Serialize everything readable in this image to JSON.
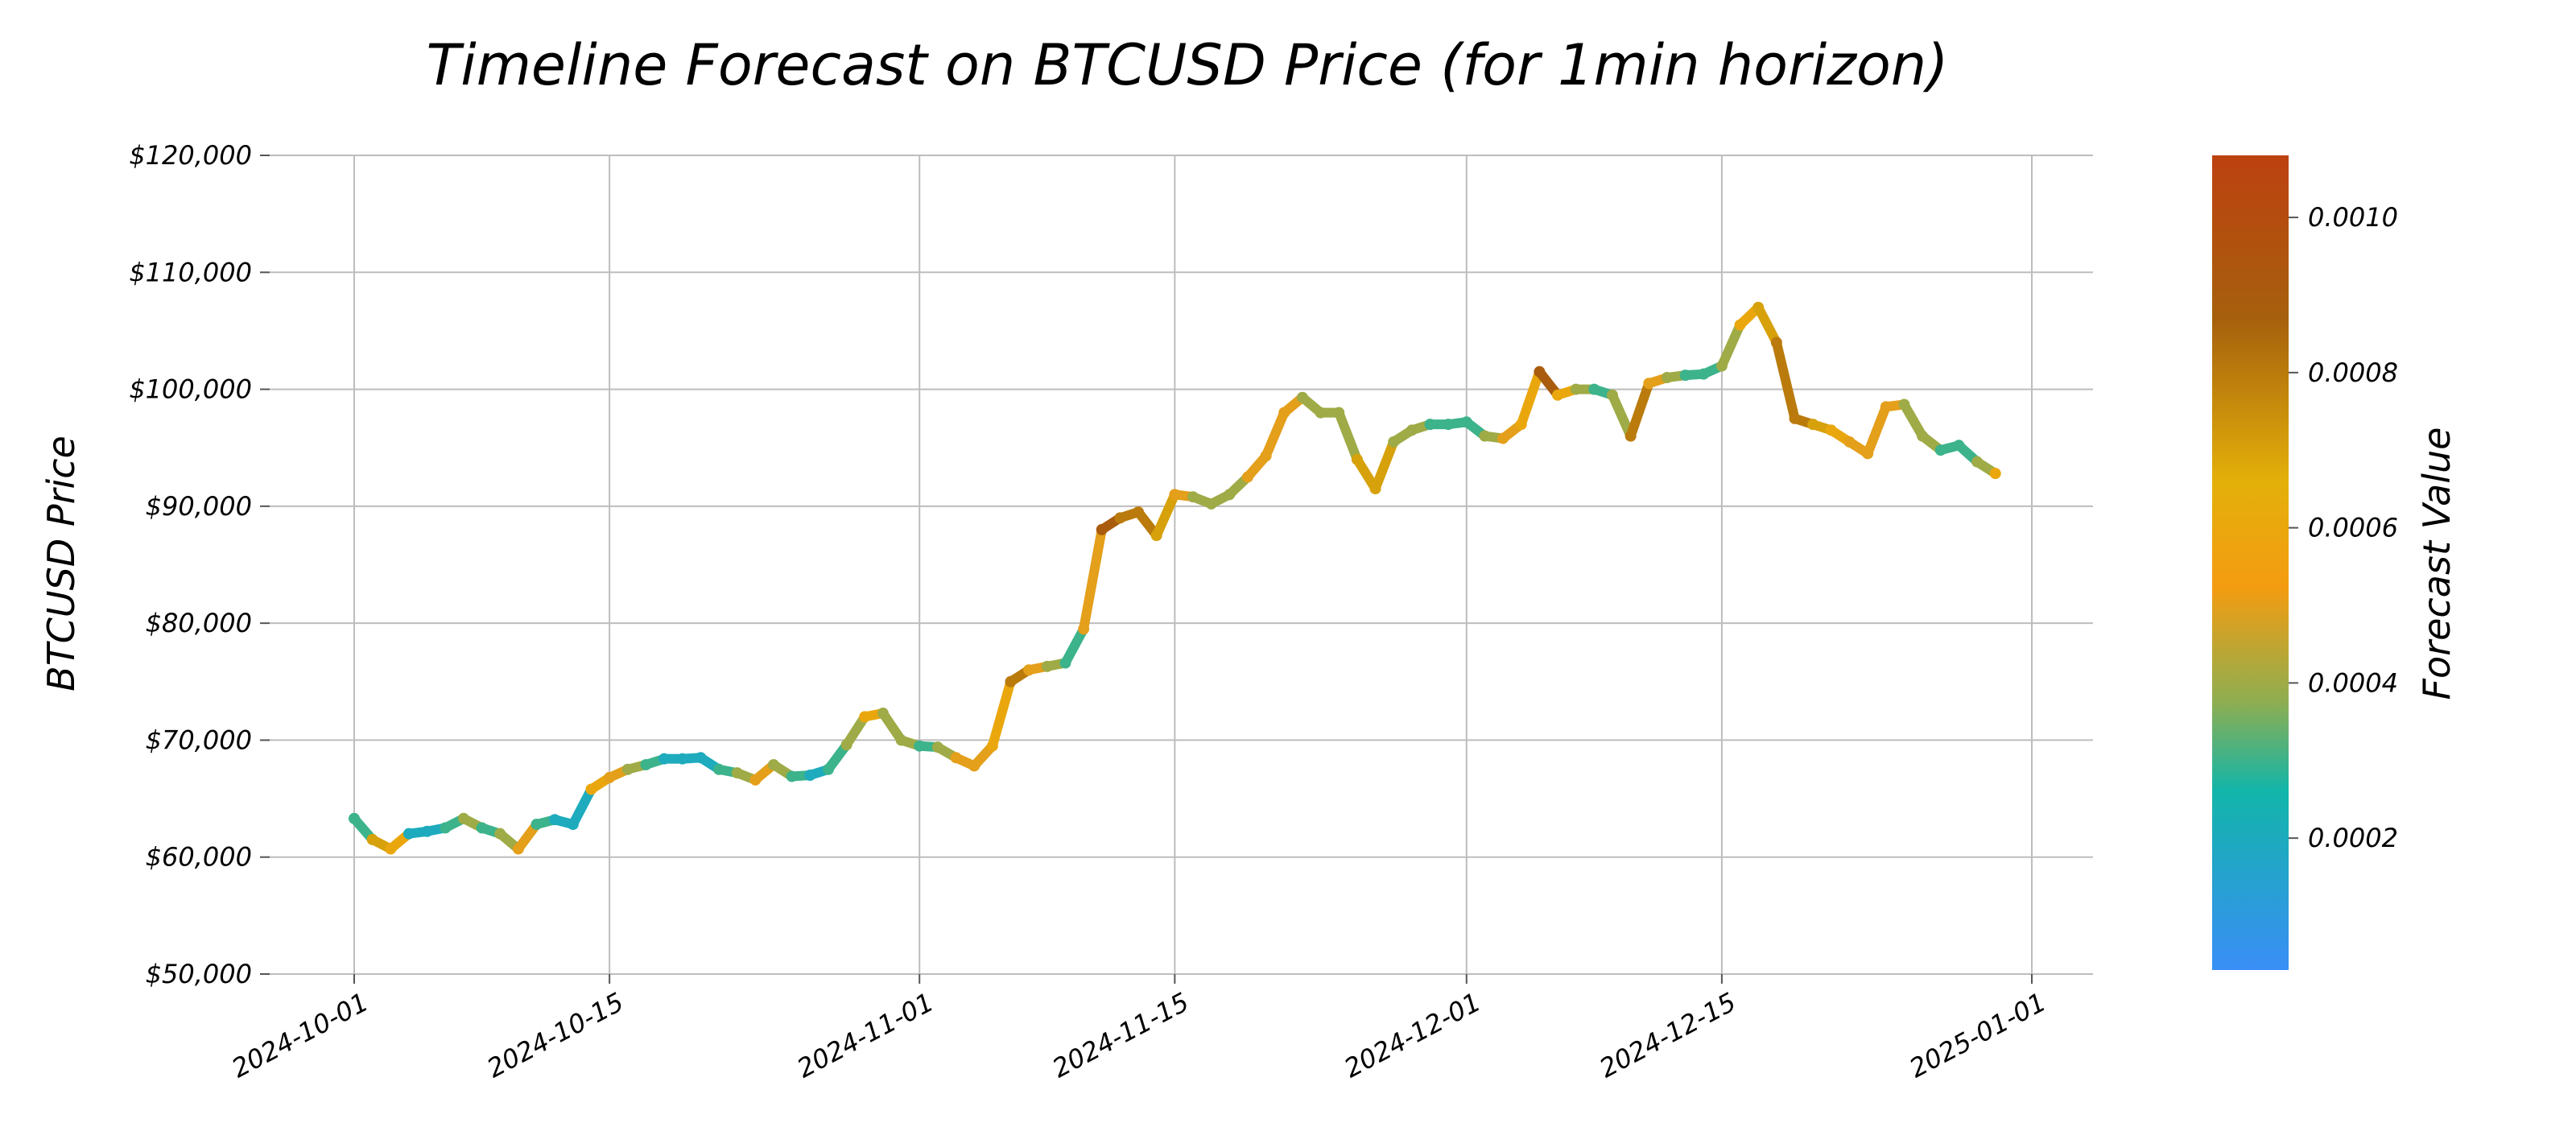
{
  "chart_data": {
    "type": "line",
    "title": "Timeline Forecast on BTCUSD Price (for 1min horizon)",
    "xlabel": "",
    "ylabel": "BTCUSD Price",
    "xlim": [
      "2024-10-01",
      "2025-01-01"
    ],
    "ylim": [
      50000,
      120000
    ],
    "y_ticks": [
      50000,
      60000,
      70000,
      80000,
      90000,
      100000,
      110000,
      120000
    ],
    "y_tick_labels": [
      "$50,000",
      "$60,000",
      "$70,000",
      "$80,000",
      "$90,000",
      "$100,000",
      "$110,000",
      "$120,000"
    ],
    "x_ticks": [
      "2024-10-01",
      "2024-10-15",
      "2024-11-01",
      "2024-11-15",
      "2024-12-01",
      "2024-12-15",
      "2025-01-01"
    ],
    "grid": true,
    "colorbar": {
      "label": "Forecast Value",
      "range": [
        3e-05,
        0.00108
      ],
      "ticks": [
        0.0002,
        0.0004,
        0.0006,
        0.0008,
        0.001
      ],
      "tick_labels": [
        "0.0002",
        "0.0004",
        "0.0006",
        "0.0008",
        "0.0010"
      ],
      "colors": [
        "#3a8ef6",
        "#12b5a9",
        "#f49c11",
        "#e3b00a",
        "#a6600d",
        "#bd4110"
      ]
    },
    "series": [
      {
        "x": [
          "2024-10-01",
          "2024-10-02",
          "2024-10-03",
          "2024-10-04",
          "2024-10-05",
          "2024-10-06",
          "2024-10-07",
          "2024-10-08",
          "2024-10-09",
          "2024-10-10",
          "2024-10-11",
          "2024-10-12",
          "2024-10-13",
          "2024-10-14",
          "2024-10-15",
          "2024-10-16",
          "2024-10-17",
          "2024-10-18",
          "2024-10-19",
          "2024-10-20",
          "2024-10-21",
          "2024-10-22",
          "2024-10-23",
          "2024-10-24",
          "2024-10-25",
          "2024-10-26",
          "2024-10-27",
          "2024-10-28",
          "2024-10-29",
          "2024-10-30",
          "2024-10-31",
          "2024-11-01",
          "2024-11-02",
          "2024-11-03",
          "2024-11-04",
          "2024-11-05",
          "2024-11-06",
          "2024-11-07",
          "2024-11-08",
          "2024-11-09",
          "2024-11-10",
          "2024-11-11",
          "2024-11-12",
          "2024-11-13",
          "2024-11-14",
          "2024-11-15",
          "2024-11-16",
          "2024-11-17",
          "2024-11-18",
          "2024-11-19",
          "2024-11-20",
          "2024-11-21",
          "2024-11-22",
          "2024-11-23",
          "2024-11-24",
          "2024-11-25",
          "2024-11-26",
          "2024-11-27",
          "2024-11-28",
          "2024-11-29",
          "2024-11-30",
          "2024-12-01",
          "2024-12-02",
          "2024-12-03",
          "2024-12-04",
          "2024-12-05",
          "2024-12-06",
          "2024-12-07",
          "2024-12-08",
          "2024-12-09",
          "2024-12-10",
          "2024-12-11",
          "2024-12-12",
          "2024-12-13",
          "2024-12-14",
          "2024-12-15",
          "2024-12-16",
          "2024-12-17",
          "2024-12-18",
          "2024-12-19",
          "2024-12-20",
          "2024-12-21",
          "2024-12-22",
          "2024-12-23",
          "2024-12-24",
          "2024-12-25",
          "2024-12-26",
          "2024-12-27",
          "2024-12-28",
          "2024-12-29",
          "2024-12-30"
        ],
        "y": [
          63300,
          61500,
          60700,
          62000,
          62200,
          62500,
          63300,
          62500,
          62000,
          60700,
          62800,
          63200,
          62800,
          65800,
          66800,
          67500,
          67900,
          68400,
          68400,
          68500,
          67500,
          67200,
          66600,
          67900,
          66900,
          67000,
          67500,
          69600,
          72000,
          72300,
          70000,
          69500,
          69400,
          68500,
          67800,
          69500,
          75000,
          76000,
          76300,
          76600,
          79500,
          88000,
          89000,
          89500,
          87500,
          91000,
          90800,
          90200,
          91000,
          92500,
          94300,
          98000,
          99300,
          98000,
          98000,
          94000,
          91500,
          95500,
          96500,
          97000,
          97000,
          97200,
          96000,
          95800,
          97000,
          101500,
          99500,
          100000,
          100000,
          99500,
          96000,
          100500,
          101000,
          101200,
          101300,
          102000,
          105500,
          107000,
          104000,
          97500,
          97000,
          96500,
          95500,
          94500,
          98500,
          98700,
          96000,
          94800,
          95200,
          93800,
          92800
        ],
        "forecast": [
          0.0003,
          0.0007,
          0.0006,
          0.0002,
          0.0002,
          0.0003,
          0.0004,
          0.0003,
          0.0004,
          0.0005,
          0.0003,
          0.0002,
          0.0002,
          0.0006,
          0.0005,
          0.0004,
          0.0003,
          0.0002,
          0.0002,
          0.0002,
          0.0003,
          0.0004,
          0.0005,
          0.0004,
          0.0003,
          0.0002,
          0.0003,
          0.0004,
          0.0006,
          0.0004,
          0.0004,
          0.0003,
          0.0004,
          0.0005,
          0.0005,
          0.0006,
          0.0008,
          0.0005,
          0.0004,
          0.0003,
          0.0005,
          0.0009,
          0.0008,
          0.0008,
          0.0007,
          0.0005,
          0.0004,
          0.0004,
          0.0004,
          0.0005,
          0.0005,
          0.0005,
          0.0004,
          0.0004,
          0.0004,
          0.0007,
          0.0007,
          0.0004,
          0.0004,
          0.0003,
          0.0003,
          0.0003,
          0.0004,
          0.0005,
          0.0006,
          0.0009,
          0.0006,
          0.0004,
          0.0003,
          0.0004,
          0.0008,
          0.0005,
          0.0004,
          0.0003,
          0.0003,
          0.0004,
          0.0006,
          0.0007,
          0.0008,
          0.0008,
          0.0007,
          0.0006,
          0.0005,
          0.0005,
          0.0005,
          0.0004,
          0.0004,
          0.0003,
          0.0003,
          0.0004,
          0.0006
        ]
      }
    ]
  }
}
